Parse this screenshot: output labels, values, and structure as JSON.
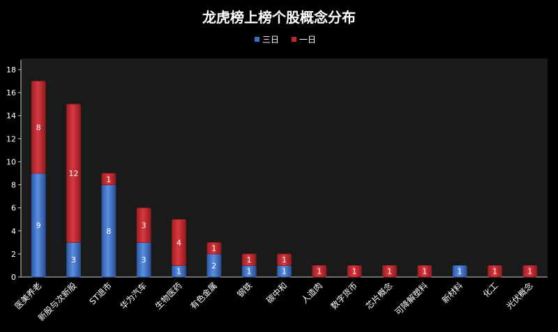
{
  "chart_data": {
    "type": "bar",
    "stacked": true,
    "title": "龙虎榜上榜个股概念分布",
    "xlabel": "",
    "ylabel": "",
    "ylim": [
      0,
      18
    ],
    "yticks": [
      0,
      2,
      4,
      6,
      8,
      10,
      12,
      14,
      16,
      18
    ],
    "grid": false,
    "legend_position": "top-center",
    "categories": [
      "医美养老",
      "新股与次新股",
      "ST退市",
      "华为汽车",
      "生物医药",
      "有色金属",
      "钢铁",
      "碳中和",
      "人造肉",
      "数字货币",
      "芯片概念",
      "可降解塑料",
      "新材料",
      "化工",
      "光伏概念"
    ],
    "series": [
      {
        "name": "三日",
        "color": "#3b6fc4",
        "values": [
          9,
          3,
          8,
          3,
          1,
          2,
          1,
          1,
          0,
          0,
          0,
          0,
          1,
          0,
          0
        ]
      },
      {
        "name": "一日",
        "color": "#c0262c",
        "values": [
          8,
          12,
          1,
          3,
          4,
          1,
          1,
          1,
          1,
          1,
          1,
          1,
          0,
          1,
          1
        ]
      }
    ]
  }
}
